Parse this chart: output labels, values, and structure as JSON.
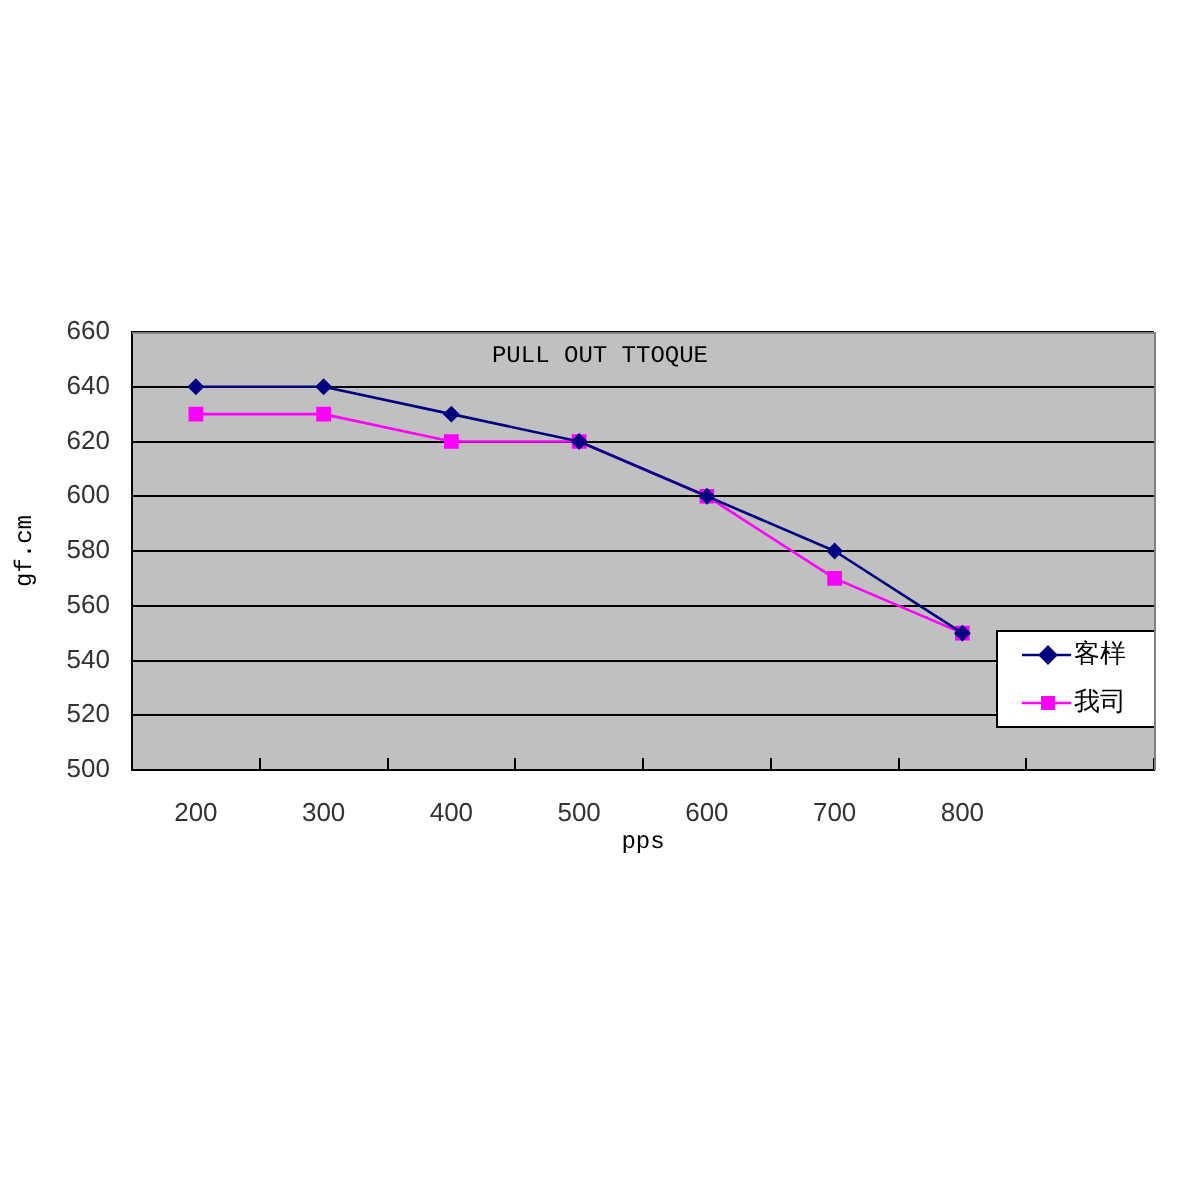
{
  "chart_data": {
    "type": "line",
    "title": "PULL OUT TTOQUE",
    "xlabel": "pps",
    "ylabel": "gf.cm",
    "categories": [
      "200",
      "300",
      "400",
      "500",
      "600",
      "700",
      "800",
      null
    ],
    "series": [
      {
        "name": "客样",
        "color": "#000080",
        "marker": "diamond",
        "values": [
          640,
          640,
          630,
          620,
          600,
          580,
          550,
          null
        ]
      },
      {
        "name": "我司",
        "color": "#ff00ff",
        "marker": "square",
        "values": [
          630,
          630,
          620,
          620,
          600,
          570,
          550,
          null
        ]
      }
    ],
    "ylim": [
      500,
      660
    ],
    "yticks": [
      500,
      520,
      540,
      560,
      580,
      600,
      620,
      640,
      660
    ],
    "grid": "y",
    "legend": "bottom right"
  }
}
